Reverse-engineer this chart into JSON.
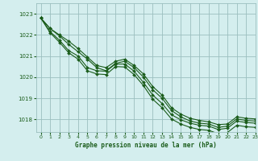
{
  "title": "Graphe pression niveau de la mer (hPa)",
  "background_color": "#d4eeee",
  "grid_color": "#9bbfbf",
  "line_color": "#1a5c1a",
  "marker_color": "#1a5c1a",
  "xlim": [
    -0.5,
    23
  ],
  "ylim": [
    1017.4,
    1023.5
  ],
  "yticks": [
    1018,
    1019,
    1020,
    1021,
    1022,
    1023
  ],
  "xticks": [
    0,
    1,
    2,
    3,
    4,
    5,
    6,
    7,
    8,
    9,
    10,
    11,
    12,
    13,
    14,
    15,
    16,
    17,
    18,
    19,
    20,
    21,
    22,
    23
  ],
  "series": [
    [
      1022.8,
      1022.3,
      1022.0,
      1021.7,
      1021.35,
      1020.95,
      1020.55,
      1020.45,
      1020.75,
      1020.85,
      1020.55,
      1020.15,
      1019.55,
      1019.15,
      1018.55,
      1018.25,
      1018.05,
      1017.95,
      1017.88,
      1017.75,
      1017.78,
      1018.12,
      1018.05,
      1018.02
    ],
    [
      1022.8,
      1022.3,
      1021.95,
      1021.55,
      1021.2,
      1020.85,
      1020.45,
      1020.3,
      1020.65,
      1020.75,
      1020.45,
      1020.0,
      1019.4,
      1019.0,
      1018.42,
      1018.12,
      1017.92,
      1017.82,
      1017.78,
      1017.62,
      1017.68,
      1018.02,
      1017.95,
      1017.92
    ],
    [
      1022.8,
      1022.15,
      1021.75,
      1021.25,
      1021.0,
      1020.45,
      1020.3,
      1020.28,
      1020.62,
      1020.62,
      1020.28,
      1019.75,
      1019.15,
      1018.75,
      1018.22,
      1017.98,
      1017.82,
      1017.72,
      1017.68,
      1017.52,
      1017.58,
      1017.92,
      1017.85,
      1017.82
    ],
    [
      1022.8,
      1022.1,
      1021.65,
      1021.15,
      1020.85,
      1020.3,
      1020.15,
      1020.12,
      1020.5,
      1020.48,
      1020.12,
      1019.6,
      1018.95,
      1018.55,
      1018.02,
      1017.78,
      1017.62,
      1017.52,
      1017.48,
      1017.32,
      1017.38,
      1017.72,
      1017.65,
      1017.62
    ]
  ]
}
